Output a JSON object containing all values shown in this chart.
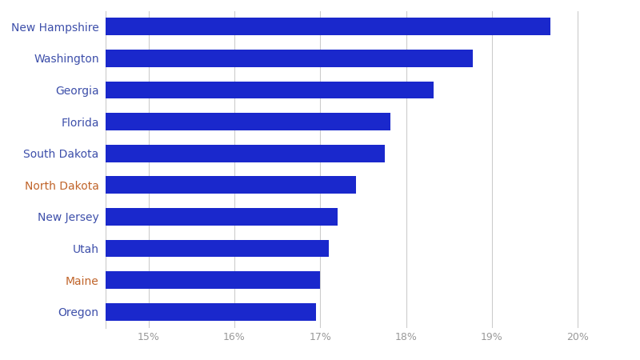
{
  "states": [
    "Oregon",
    "Maine",
    "Utah",
    "New Jersey",
    "North Dakota",
    "South Dakota",
    "Florida",
    "Georgia",
    "Washington",
    "New Hampshire"
  ],
  "values": [
    0.1695,
    0.17,
    0.171,
    0.172,
    0.1742,
    0.1775,
    0.1782,
    0.1832,
    0.1878,
    0.1968
  ],
  "bar_color": "#1a28cc",
  "label_colors": {
    "New Hampshire": "#3d4faa",
    "Washington": "#3d4faa",
    "Georgia": "#3d4faa",
    "Florida": "#3d4faa",
    "South Dakota": "#3d4faa",
    "North Dakota": "#c0642a",
    "New Jersey": "#3d4faa",
    "Utah": "#3d4faa",
    "Maine": "#c0642a",
    "Oregon": "#3d4faa"
  },
  "xlim": [
    0.145,
    0.205
  ],
  "xticks": [
    0.15,
    0.16,
    0.17,
    0.18,
    0.19,
    0.2
  ],
  "xtick_labels": [
    "15%",
    "16%",
    "17%",
    "18%",
    "19%",
    "20%"
  ],
  "background_color": "#ffffff",
  "grid_color": "#cccccc",
  "bar_height": 0.55,
  "label_fontsize": 10,
  "xtick_fontsize": 9
}
